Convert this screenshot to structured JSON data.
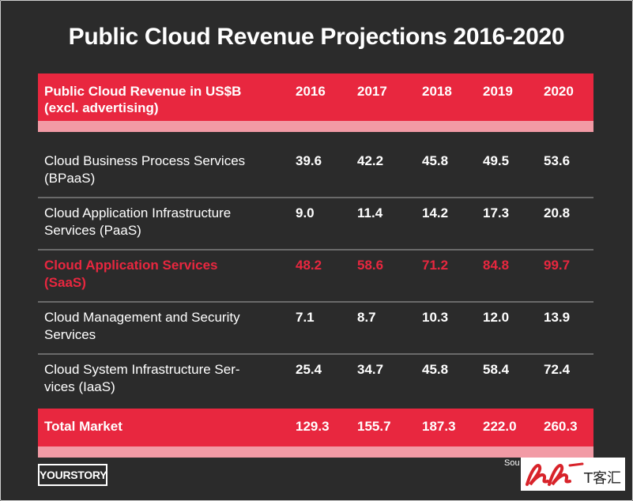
{
  "title": "Public Cloud Revenue Projections 2016-2020",
  "chart_data": {
    "type": "table",
    "header": {
      "label_line1": "Public Cloud Revenue in US$B",
      "label_line2": "(excl. advertising)",
      "years": [
        "2016",
        "2017",
        "2018",
        "2019",
        "2020"
      ]
    },
    "rows": [
      {
        "name_line1": "Cloud Business Process Services",
        "name_line2": "(BPaaS)",
        "values": [
          "39.6",
          "42.2",
          "45.8",
          "49.5",
          "53.6"
        ]
      },
      {
        "name_line1": "Cloud Application Infrastructure",
        "name_line2": "Services (PaaS)",
        "values": [
          "9.0",
          "11.4",
          "14.2",
          "17.3",
          "20.8"
        ]
      },
      {
        "name_line1": "Cloud Application Services",
        "name_line2": "(SaaS)",
        "values": [
          "48.2",
          "58.6",
          "71.2",
          "84.8",
          "99.7"
        ],
        "highlight": true
      },
      {
        "name_line1": "Cloud Management and Security",
        "name_line2": "Services",
        "values": [
          "7.1",
          "8.7",
          "10.3",
          "12.0",
          "13.9"
        ]
      },
      {
        "name_line1": "Cloud System Infrastructure Ser-",
        "name_line2": "vices (IaaS)",
        "values": [
          "25.4",
          "34.7",
          "45.8",
          "58.4",
          "72.4"
        ]
      }
    ],
    "total": {
      "name": "Total Market",
      "values": [
        "129.3",
        "155.7",
        "187.3",
        "222.0",
        "260.3"
      ]
    }
  },
  "footer": {
    "brand": "YOURSTORY",
    "source_fragment": "Sou"
  },
  "colors": {
    "background": "#2b2b2b",
    "accent": "#e8273f",
    "accent_light": "#f29aa5",
    "divider": "#6a6a6a"
  }
}
